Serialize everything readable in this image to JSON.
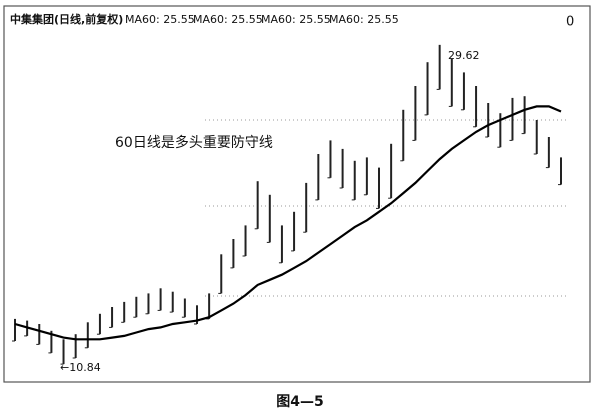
{
  "chart_data": {
    "type": "hilo",
    "title": "中集集团(日线,前复权)",
    "indicator_labels": [
      "MA60: 25.55",
      "MA60: 25.55",
      "MA60: 25.55",
      "MA60: 25.55"
    ],
    "annotation": "60日线是多头重要防守线",
    "high_label": "29.62",
    "low_label": "←10.84",
    "caption": "图4—5",
    "corner_mark": "0",
    "ylim": [
      10.2,
      30.2
    ],
    "color": "#222222",
    "ma_color": "#000000",
    "series": [
      {
        "name": "high",
        "values": [
          13.5,
          13.4,
          13.2,
          12.8,
          12.3,
          12.6,
          13.3,
          13.8,
          14.2,
          14.5,
          14.8,
          15.0,
          15.3,
          15.1,
          14.7,
          14.3,
          15.0,
          17.3,
          18.2,
          19.0,
          21.6,
          20.8,
          19.0,
          19.8,
          21.5,
          23.2,
          24.0,
          23.5,
          22.8,
          23.0,
          22.4,
          23.8,
          25.8,
          27.2,
          28.6,
          29.62,
          28.8,
          28.0,
          27.2,
          26.2,
          25.6,
          26.5,
          26.6,
          25.2,
          24.2,
          23.0
        ]
      },
      {
        "name": "low",
        "values": [
          12.2,
          12.5,
          12.0,
          11.5,
          10.84,
          11.2,
          11.8,
          12.6,
          13.0,
          13.3,
          13.6,
          13.8,
          14.0,
          13.9,
          13.6,
          13.2,
          13.5,
          15.0,
          16.5,
          17.2,
          18.8,
          18.0,
          16.8,
          17.5,
          18.6,
          20.5,
          21.8,
          21.2,
          20.5,
          20.8,
          20.0,
          20.6,
          22.8,
          24.0,
          25.5,
          27.0,
          26.0,
          25.8,
          24.8,
          24.2,
          23.6,
          24.0,
          24.4,
          23.2,
          22.4,
          21.4
        ]
      },
      {
        "name": "MA60",
        "values": [
          13.2,
          13.0,
          12.8,
          12.6,
          12.4,
          12.3,
          12.3,
          12.3,
          12.4,
          12.5,
          12.7,
          12.9,
          13.0,
          13.2,
          13.3,
          13.4,
          13.6,
          14.0,
          14.4,
          14.9,
          15.5,
          15.8,
          16.1,
          16.5,
          16.9,
          17.4,
          17.9,
          18.4,
          18.9,
          19.3,
          19.8,
          20.3,
          20.9,
          21.5,
          22.2,
          22.9,
          23.5,
          24.0,
          24.5,
          24.9,
          25.2,
          25.5,
          25.8,
          26.0,
          26.0,
          25.7
        ]
      }
    ]
  }
}
